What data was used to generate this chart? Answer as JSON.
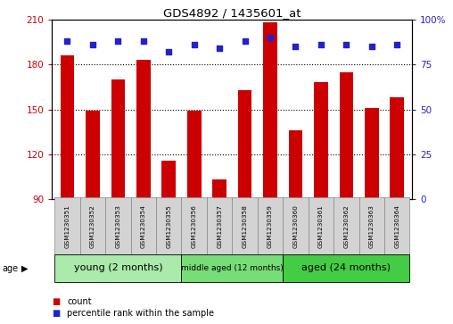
{
  "title": "GDS4892 / 1435601_at",
  "samples": [
    "GSM1230351",
    "GSM1230352",
    "GSM1230353",
    "GSM1230354",
    "GSM1230355",
    "GSM1230356",
    "GSM1230357",
    "GSM1230358",
    "GSM1230359",
    "GSM1230360",
    "GSM1230361",
    "GSM1230362",
    "GSM1230363",
    "GSM1230364"
  ],
  "counts": [
    186,
    149,
    170,
    183,
    116,
    149,
    103,
    163,
    208,
    136,
    168,
    175,
    151,
    158
  ],
  "percentile_ranks": [
    88,
    86,
    88,
    88,
    82,
    86,
    84,
    88,
    90,
    85,
    86,
    86,
    85,
    86
  ],
  "ylim_left": [
    90,
    210
  ],
  "ylim_right": [
    0,
    100
  ],
  "yticks_left": [
    90,
    120,
    150,
    180,
    210
  ],
  "yticks_right": [
    0,
    25,
    50,
    75,
    100
  ],
  "ytick_right_labels": [
    "0",
    "25",
    "50",
    "75",
    "100%"
  ],
  "bar_color": "#cc0000",
  "dot_color": "#2222cc",
  "groups": [
    {
      "label": "young (2 months)",
      "start": 0,
      "end": 4,
      "color": "#aaeaaa"
    },
    {
      "label": "middle aged (12 months)",
      "start": 5,
      "end": 8,
      "color": "#77dd77"
    },
    {
      "label": "aged (24 months)",
      "start": 9,
      "end": 13,
      "color": "#44cc44"
    }
  ],
  "age_label": "age",
  "legend_count_label": "count",
  "legend_percentile_label": "percentile rank within the sample",
  "grid_linestyle": "dotted",
  "grid_color": "#000000",
  "background_color": "#ffffff",
  "label_box_color": "#d3d3d3",
  "label_box_edge_color": "#888888"
}
